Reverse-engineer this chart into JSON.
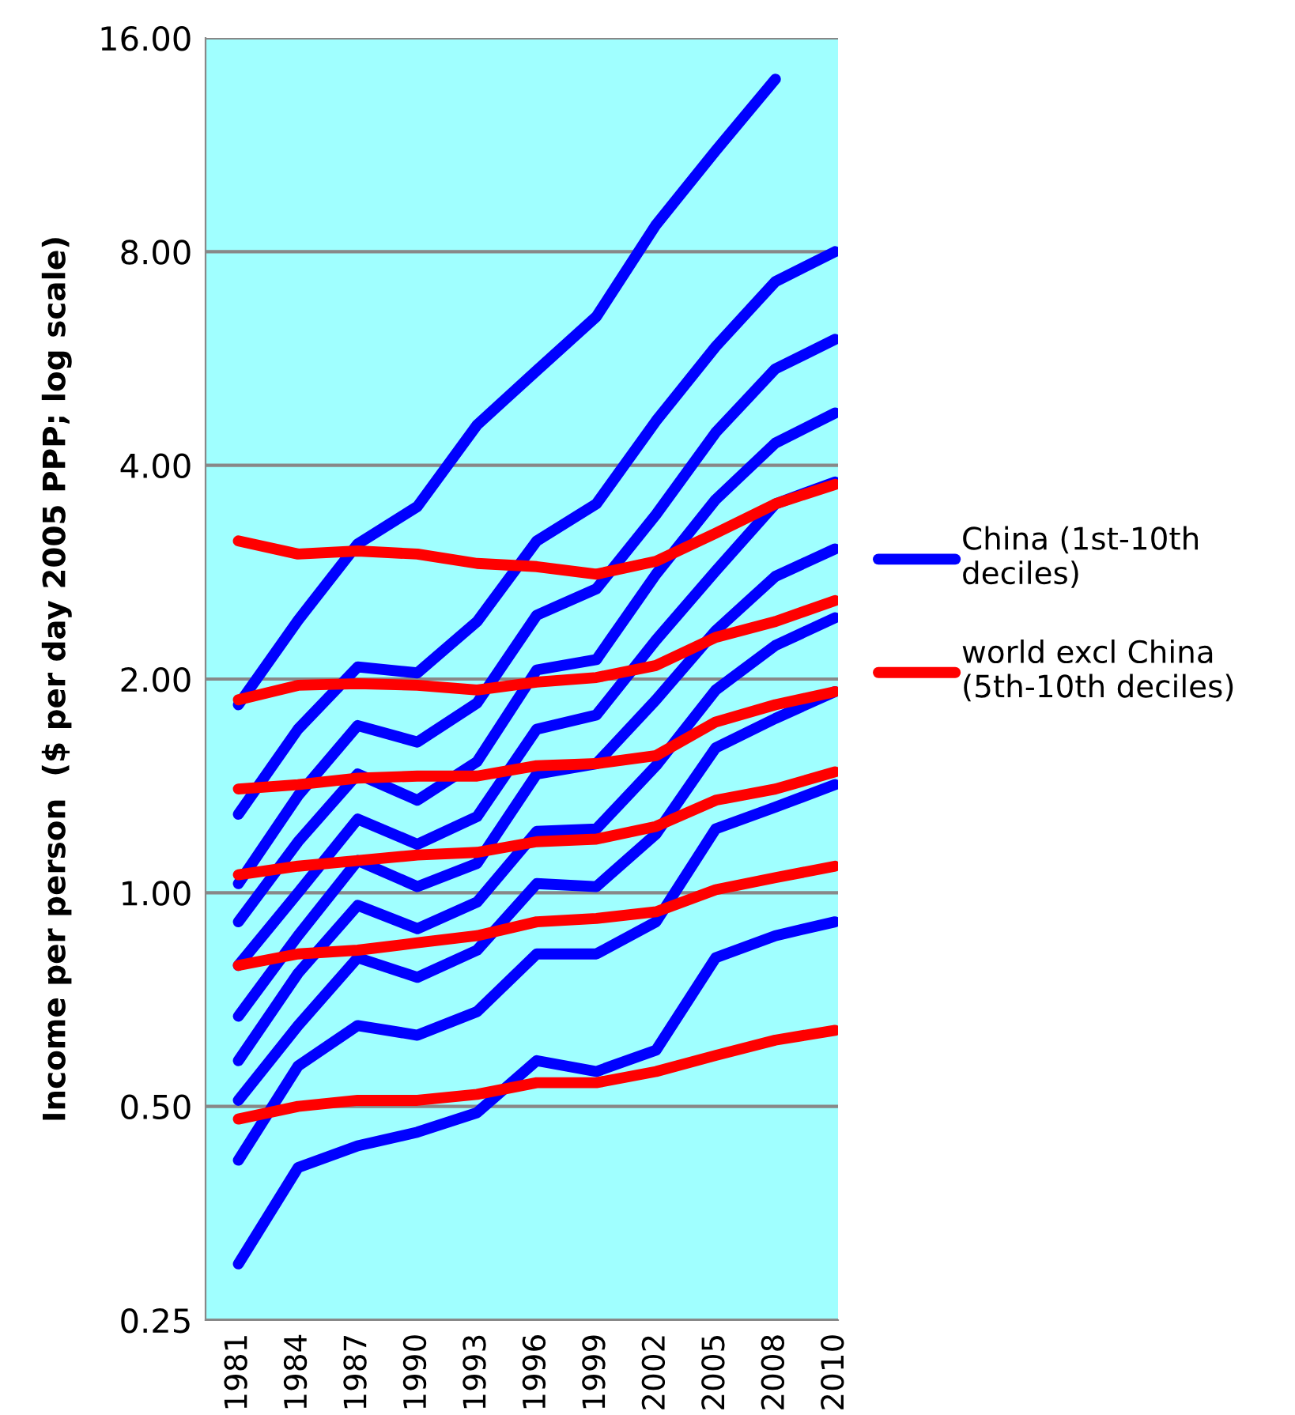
{
  "chart_data": {
    "type": "line",
    "ylabel": "Income per person  ($ per day 2005 PPP; log scale)",
    "log": "y",
    "categories": [
      "1981",
      "1984",
      "1987",
      "1990",
      "1993",
      "1996",
      "1999",
      "2002",
      "2005",
      "2008",
      "2010"
    ],
    "ylim": [
      0.25,
      16
    ],
    "yticks": [
      {
        "value": 0.25,
        "label": "0.25"
      },
      {
        "value": 0.5,
        "label": "0.50"
      },
      {
        "value": 1,
        "label": "1.00"
      },
      {
        "value": 2,
        "label": "2.00"
      },
      {
        "value": 4,
        "label": "4.00"
      },
      {
        "value": 8,
        "label": "8.00"
      },
      {
        "value": 16,
        "label": "16.00"
      }
    ],
    "grid": "y",
    "legend": "right",
    "series": [
      {
        "name": "China (1st-10th deciles)",
        "color": "#0000ff",
        "values": [
          0.3,
          0.41,
          0.44,
          0.46,
          0.49,
          0.58,
          0.56,
          0.6,
          0.81,
          0.87,
          0.91
        ]
      },
      {
        "color": "#0000ff",
        "values": [
          0.42,
          0.57,
          0.65,
          0.63,
          0.68,
          0.82,
          0.82,
          0.91,
          1.23,
          1.32,
          1.42
        ]
      },
      {
        "color": "#0000ff",
        "values": [
          0.51,
          0.65,
          0.81,
          0.76,
          0.83,
          1.03,
          1.02,
          1.21,
          1.6,
          1.76,
          1.92
        ]
      },
      {
        "color": "#0000ff",
        "values": [
          0.58,
          0.77,
          0.96,
          0.89,
          0.97,
          1.22,
          1.23,
          1.51,
          1.93,
          2.23,
          2.44
        ]
      },
      {
        "color": "#0000ff",
        "values": [
          0.67,
          0.87,
          1.11,
          1.02,
          1.1,
          1.47,
          1.52,
          1.87,
          2.34,
          2.79,
          3.05
        ]
      },
      {
        "color": "#0000ff",
        "values": [
          0.79,
          1.0,
          1.27,
          1.17,
          1.28,
          1.7,
          1.78,
          2.27,
          2.84,
          3.53,
          3.79
        ]
      },
      {
        "color": "#0000ff",
        "values": [
          0.91,
          1.18,
          1.47,
          1.35,
          1.53,
          2.06,
          2.13,
          2.81,
          3.58,
          4.3,
          4.74
        ]
      },
      {
        "color": "#0000ff",
        "values": [
          1.03,
          1.37,
          1.72,
          1.63,
          1.85,
          2.46,
          2.68,
          3.41,
          4.45,
          5.47,
          6.02
        ]
      },
      {
        "color": "#0000ff",
        "values": [
          1.29,
          1.7,
          2.08,
          2.04,
          2.41,
          3.13,
          3.53,
          4.62,
          5.88,
          7.26,
          8.0
        ]
      },
      {
        "color": "#0000ff",
        "values": [
          1.84,
          2.42,
          3.1,
          3.5,
          4.56,
          5.44,
          6.48,
          8.73,
          11.1,
          14.0,
          null
        ]
      },
      {
        "name": "world excl China (5th-10th deciles)",
        "color": "#ff0000",
        "values": [
          0.48,
          0.5,
          0.51,
          0.51,
          0.52,
          0.54,
          0.54,
          0.56,
          0.59,
          0.62,
          0.64
        ]
      },
      {
        "color": "#ff0000",
        "values": [
          0.79,
          0.82,
          0.83,
          0.85,
          0.87,
          0.91,
          0.92,
          0.94,
          1.01,
          1.05,
          1.09
        ]
      },
      {
        "color": "#ff0000",
        "values": [
          1.06,
          1.09,
          1.11,
          1.13,
          1.14,
          1.18,
          1.19,
          1.24,
          1.35,
          1.4,
          1.48
        ]
      },
      {
        "color": "#ff0000",
        "values": [
          1.4,
          1.42,
          1.45,
          1.46,
          1.46,
          1.51,
          1.52,
          1.56,
          1.74,
          1.84,
          1.92
        ]
      },
      {
        "color": "#ff0000",
        "values": [
          1.87,
          1.96,
          1.97,
          1.96,
          1.93,
          1.98,
          2.01,
          2.09,
          2.29,
          2.41,
          2.58
        ]
      },
      {
        "color": "#ff0000",
        "values": [
          3.13,
          3.0,
          3.03,
          3.0,
          2.91,
          2.88,
          2.81,
          2.93,
          3.21,
          3.53,
          3.76
        ]
      }
    ]
  }
}
